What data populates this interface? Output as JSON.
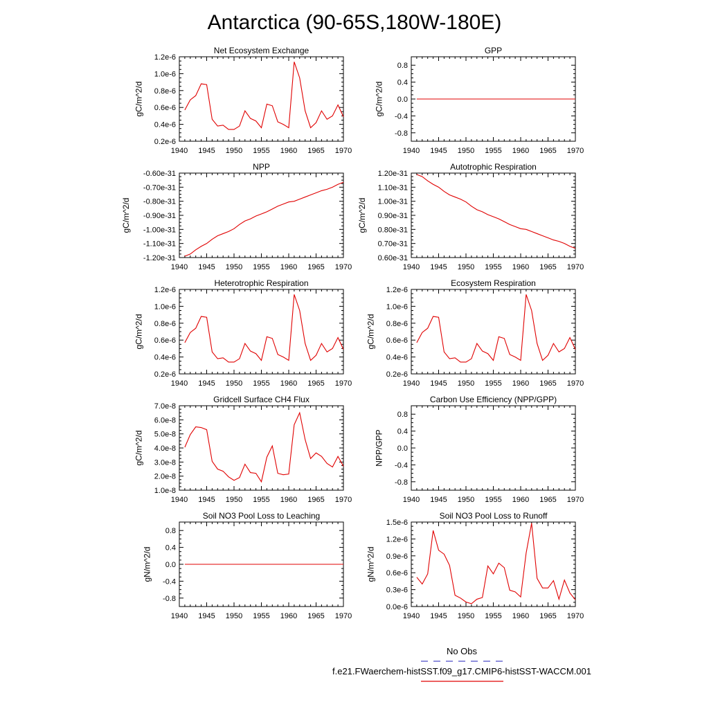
{
  "figure": {
    "title": "Antarctica (90-65S,180W-180E)",
    "legend": [
      {
        "label": "No Obs",
        "color": "#4c4cc8",
        "dash": "dashed"
      },
      {
        "label": "f.e21.FWaerchem-histSST.f09_g17.CMIP6-histSST-WACCM.001",
        "color": "#e00000",
        "dash": "solid"
      }
    ],
    "series_color": "#e00000"
  },
  "chart_data": [
    {
      "type": "line",
      "title": "Net Ecosystem Exchange",
      "ylabel": "gC/m^2/d",
      "xlim": [
        1940,
        1970
      ],
      "ylim": [
        2e-07,
        1.2e-06
      ],
      "xticks": [
        1940,
        1945,
        1950,
        1955,
        1960,
        1965,
        1970
      ],
      "xtick_labels": [
        "1940",
        "1945",
        "1950",
        "1955",
        "1960",
        "1965",
        "1970"
      ],
      "yticks": [
        2e-07,
        4e-07,
        6e-07,
        8e-07,
        1e-06,
        1.2e-06
      ],
      "ytick_labels": [
        "0.2e-6",
        "0.4e-6",
        "0.6e-6",
        "0.8e-6",
        "1.0e-6",
        "1.2e-6"
      ],
      "x": [
        1941,
        1942,
        1943,
        1944,
        1945,
        1946,
        1947,
        1948,
        1949,
        1950,
        1951,
        1952,
        1953,
        1954,
        1955,
        1956,
        1957,
        1958,
        1959,
        1960,
        1961,
        1962,
        1963,
        1964,
        1965,
        1966,
        1967,
        1968,
        1969,
        1970
      ],
      "y": [
        5.7e-07,
        6.9e-07,
        7.4e-07,
        8.8e-07,
        8.7e-07,
        4.6e-07,
        3.8e-07,
        3.9e-07,
        3.4e-07,
        3.4e-07,
        3.8e-07,
        5.6e-07,
        4.7e-07,
        4.4e-07,
        3.6e-07,
        6.4e-07,
        6.2e-07,
        4.3e-07,
        4e-07,
        3.6e-07,
        1.14e-06,
        9.5e-07,
        5.6e-07,
        3.6e-07,
        4.2e-07,
        5.6e-07,
        4.6e-07,
        5e-07,
        6.3e-07,
        4.9e-07
      ]
    },
    {
      "type": "line",
      "title": "GPP",
      "ylabel": "gC/m^2/d",
      "xlim": [
        1940,
        1970
      ],
      "ylim": [
        -1.0,
        1.0
      ],
      "xticks": [
        1940,
        1945,
        1950,
        1955,
        1960,
        1965,
        1970
      ],
      "xtick_labels": [
        "1940",
        "1945",
        "1950",
        "1955",
        "1960",
        "1965",
        "1970"
      ],
      "yticks": [
        -0.8,
        -0.4,
        0.0,
        0.4,
        0.8
      ],
      "ytick_labels": [
        "-0.8",
        "-0.4",
        "0.0",
        "0.4",
        "0.8"
      ],
      "x": [
        1941,
        1942,
        1943,
        1944,
        1945,
        1946,
        1947,
        1948,
        1949,
        1950,
        1951,
        1952,
        1953,
        1954,
        1955,
        1956,
        1957,
        1958,
        1959,
        1960,
        1961,
        1962,
        1963,
        1964,
        1965,
        1966,
        1967,
        1968,
        1969,
        1970
      ],
      "y": [
        0,
        0,
        0,
        0,
        0,
        0,
        0,
        0,
        0,
        0,
        0,
        0,
        0,
        0,
        0,
        0,
        0,
        0,
        0,
        0,
        0,
        0,
        0,
        0,
        0,
        0,
        0,
        0,
        0,
        0
      ]
    },
    {
      "type": "line",
      "title": "NPP",
      "ylabel": "gC/m^2/d",
      "xlim": [
        1940,
        1970
      ],
      "ylim": [
        -1.2e-31,
        -6e-32
      ],
      "xticks": [
        1940,
        1945,
        1950,
        1955,
        1960,
        1965,
        1970
      ],
      "xtick_labels": [
        "1940",
        "1945",
        "1950",
        "1955",
        "1960",
        "1965",
        "1970"
      ],
      "yticks": [
        -1.2e-31,
        -1.1e-31,
        -1e-31,
        -9e-32,
        -8e-32,
        -7e-32,
        -6e-32
      ],
      "ytick_labels": [
        "-1.20e-31",
        "-1.10e-31",
        "-1.00e-31",
        "-0.90e-31",
        "-0.80e-31",
        "-0.70e-31",
        "-0.60e-31"
      ],
      "x": [
        1941,
        1942,
        1943,
        1944,
        1945,
        1946,
        1947,
        1948,
        1949,
        1950,
        1951,
        1952,
        1953,
        1954,
        1955,
        1956,
        1957,
        1958,
        1959,
        1960,
        1961,
        1962,
        1963,
        1964,
        1965,
        1966,
        1967,
        1968,
        1969,
        1970
      ],
      "y": [
        -1.19e-31,
        -1.175e-31,
        -1.145e-31,
        -1.12e-31,
        -1.1e-31,
        -1.07e-31,
        -1.045e-31,
        -1.03e-31,
        -1.015e-31,
        -9.95e-32,
        -9.65e-32,
        -9.4e-32,
        -9.25e-32,
        -9.05e-32,
        -8.9e-32,
        -8.75e-32,
        -8.55e-32,
        -8.35e-32,
        -8.2e-32,
        -8.05e-32,
        -8e-32,
        -7.85e-32,
        -7.7e-32,
        -7.55e-32,
        -7.4e-32,
        -7.25e-32,
        -7.15e-32,
        -7e-32,
        -6.8e-32,
        -6.65e-32
      ]
    },
    {
      "type": "line",
      "title": "Autotrophic Respiration",
      "ylabel": "gC/m^2/d",
      "xlim": [
        1940,
        1970
      ],
      "ylim": [
        6e-32,
        1.2e-31
      ],
      "xticks": [
        1940,
        1945,
        1950,
        1955,
        1960,
        1965,
        1970
      ],
      "xtick_labels": [
        "1940",
        "1945",
        "1950",
        "1955",
        "1960",
        "1965",
        "1970"
      ],
      "yticks": [
        6e-32,
        7e-32,
        8e-32,
        9e-32,
        1e-31,
        1.1e-31,
        1.2e-31
      ],
      "ytick_labels": [
        "0.60e-31",
        "0.70e-31",
        "0.80e-31",
        "0.90e-31",
        "1.00e-31",
        "1.10e-31",
        "1.20e-31"
      ],
      "x": [
        1941,
        1942,
        1943,
        1944,
        1945,
        1946,
        1947,
        1948,
        1949,
        1950,
        1951,
        1952,
        1953,
        1954,
        1955,
        1956,
        1957,
        1958,
        1959,
        1960,
        1961,
        1962,
        1963,
        1964,
        1965,
        1966,
        1967,
        1968,
        1969,
        1970
      ],
      "y": [
        1.19e-31,
        1.175e-31,
        1.145e-31,
        1.12e-31,
        1.1e-31,
        1.07e-31,
        1.045e-31,
        1.03e-31,
        1.015e-31,
        9.95e-32,
        9.65e-32,
        9.4e-32,
        9.25e-32,
        9.05e-32,
        8.9e-32,
        8.75e-32,
        8.55e-32,
        8.35e-32,
        8.2e-32,
        8.05e-32,
        8e-32,
        7.85e-32,
        7.7e-32,
        7.55e-32,
        7.4e-32,
        7.25e-32,
        7.15e-32,
        7e-32,
        6.8e-32,
        6.65e-32
      ]
    },
    {
      "type": "line",
      "title": "Heterotrophic Respiration",
      "ylabel": "gC/m^2/d",
      "xlim": [
        1940,
        1970
      ],
      "ylim": [
        2e-07,
        1.2e-06
      ],
      "xticks": [
        1940,
        1945,
        1950,
        1955,
        1960,
        1965,
        1970
      ],
      "xtick_labels": [
        "1940",
        "1945",
        "1950",
        "1955",
        "1960",
        "1965",
        "1970"
      ],
      "yticks": [
        2e-07,
        4e-07,
        6e-07,
        8e-07,
        1e-06,
        1.2e-06
      ],
      "ytick_labels": [
        "0.2e-6",
        "0.4e-6",
        "0.6e-6",
        "0.8e-6",
        "1.0e-6",
        "1.2e-6"
      ],
      "x": [
        1941,
        1942,
        1943,
        1944,
        1945,
        1946,
        1947,
        1948,
        1949,
        1950,
        1951,
        1952,
        1953,
        1954,
        1955,
        1956,
        1957,
        1958,
        1959,
        1960,
        1961,
        1962,
        1963,
        1964,
        1965,
        1966,
        1967,
        1968,
        1969,
        1970
      ],
      "y": [
        5.7e-07,
        6.9e-07,
        7.4e-07,
        8.8e-07,
        8.7e-07,
        4.6e-07,
        3.8e-07,
        3.9e-07,
        3.4e-07,
        3.4e-07,
        3.8e-07,
        5.6e-07,
        4.7e-07,
        4.4e-07,
        3.6e-07,
        6.4e-07,
        6.2e-07,
        4.3e-07,
        4e-07,
        3.6e-07,
        1.14e-06,
        9.5e-07,
        5.6e-07,
        3.6e-07,
        4.2e-07,
        5.6e-07,
        4.6e-07,
        5e-07,
        6.3e-07,
        4.9e-07
      ]
    },
    {
      "type": "line",
      "title": "Ecosystem Respiration",
      "ylabel": "gC/m^2/d",
      "xlim": [
        1940,
        1970
      ],
      "ylim": [
        2e-07,
        1.2e-06
      ],
      "xticks": [
        1940,
        1945,
        1950,
        1955,
        1960,
        1965,
        1970
      ],
      "xtick_labels": [
        "1940",
        "1945",
        "1950",
        "1955",
        "1960",
        "1965",
        "1970"
      ],
      "yticks": [
        2e-07,
        4e-07,
        6e-07,
        8e-07,
        1e-06,
        1.2e-06
      ],
      "ytick_labels": [
        "0.2e-6",
        "0.4e-6",
        "0.6e-6",
        "0.8e-6",
        "1.0e-6",
        "1.2e-6"
      ],
      "x": [
        1941,
        1942,
        1943,
        1944,
        1945,
        1946,
        1947,
        1948,
        1949,
        1950,
        1951,
        1952,
        1953,
        1954,
        1955,
        1956,
        1957,
        1958,
        1959,
        1960,
        1961,
        1962,
        1963,
        1964,
        1965,
        1966,
        1967,
        1968,
        1969,
        1970
      ],
      "y": [
        5.7e-07,
        6.9e-07,
        7.4e-07,
        8.8e-07,
        8.7e-07,
        4.6e-07,
        3.8e-07,
        3.9e-07,
        3.4e-07,
        3.4e-07,
        3.8e-07,
        5.6e-07,
        4.7e-07,
        4.4e-07,
        3.6e-07,
        6.4e-07,
        6.2e-07,
        4.3e-07,
        4e-07,
        3.6e-07,
        1.14e-06,
        9.5e-07,
        5.6e-07,
        3.6e-07,
        4.2e-07,
        5.6e-07,
        4.6e-07,
        5e-07,
        6.3e-07,
        4.9e-07
      ]
    },
    {
      "type": "line",
      "title": "Gridcell Surface CH4 Flux",
      "ylabel": "gC/m^2/d",
      "xlim": [
        1940,
        1970
      ],
      "ylim": [
        1e-08,
        7e-08
      ],
      "xticks": [
        1940,
        1945,
        1950,
        1955,
        1960,
        1965,
        1970
      ],
      "xtick_labels": [
        "1940",
        "1945",
        "1950",
        "1955",
        "1960",
        "1965",
        "1970"
      ],
      "yticks": [
        1e-08,
        2e-08,
        3e-08,
        4e-08,
        5e-08,
        6e-08,
        7e-08
      ],
      "ytick_labels": [
        "1.0e-8",
        "2.0e-8",
        "3.0e-8",
        "4.0e-8",
        "5.0e-8",
        "6.0e-8",
        "7.0e-8"
      ],
      "x": [
        1941,
        1942,
        1943,
        1944,
        1945,
        1946,
        1947,
        1948,
        1949,
        1950,
        1951,
        1952,
        1953,
        1954,
        1955,
        1956,
        1957,
        1958,
        1959,
        1960,
        1961,
        1962,
        1963,
        1964,
        1965,
        1966,
        1967,
        1968,
        1969,
        1970
      ],
      "y": [
        4.05e-08,
        4.95e-08,
        5.5e-08,
        5.45e-08,
        5.3e-08,
        3.05e-08,
        2.5e-08,
        2.35e-08,
        1.95e-08,
        1.7e-08,
        1.9e-08,
        2.85e-08,
        2.25e-08,
        2.2e-08,
        1.6e-08,
        3.35e-08,
        4.15e-08,
        2.2e-08,
        2.1e-08,
        2.15e-08,
        5.65e-08,
        6.5e-08,
        4.6e-08,
        3.25e-08,
        3.65e-08,
        3.4e-08,
        2.9e-08,
        2.65e-08,
        3.4e-08,
        2.7e-08
      ]
    },
    {
      "type": "line",
      "title": "Carbon Use Efficiency (NPP/GPP)",
      "ylabel": "NPP/GPP",
      "xlim": [
        1940,
        1970
      ],
      "ylim": [
        -1.0,
        1.0
      ],
      "xticks": [
        1940,
        1945,
        1950,
        1955,
        1960,
        1965,
        1970
      ],
      "xtick_labels": [
        "1940",
        "1945",
        "1950",
        "1955",
        "1960",
        "1965",
        "1970"
      ],
      "yticks": [
        -0.8,
        -0.4,
        0.0,
        0.4,
        0.8
      ],
      "ytick_labels": [
        "-0.8",
        "-0.4",
        "0.0",
        "0.4",
        "0.8"
      ],
      "x": [],
      "y": []
    },
    {
      "type": "line",
      "title": "Soil NO3 Pool Loss to Leaching",
      "ylabel": "gN/m^2/d",
      "xlim": [
        1940,
        1970
      ],
      "ylim": [
        -1.0,
        1.0
      ],
      "xticks": [
        1940,
        1945,
        1950,
        1955,
        1960,
        1965,
        1970
      ],
      "xtick_labels": [
        "1940",
        "1945",
        "1950",
        "1955",
        "1960",
        "1965",
        "1970"
      ],
      "yticks": [
        -0.8,
        -0.4,
        0.0,
        0.4,
        0.8
      ],
      "ytick_labels": [
        "-0.8",
        "-0.4",
        "0.0",
        "0.4",
        "0.8"
      ],
      "x": [
        1941,
        1942,
        1943,
        1944,
        1945,
        1946,
        1947,
        1948,
        1949,
        1950,
        1951,
        1952,
        1953,
        1954,
        1955,
        1956,
        1957,
        1958,
        1959,
        1960,
        1961,
        1962,
        1963,
        1964,
        1965,
        1966,
        1967,
        1968,
        1969,
        1970
      ],
      "y": [
        0,
        0,
        0,
        0,
        0,
        0,
        0,
        0,
        0,
        0,
        0,
        0,
        0,
        0,
        0,
        0,
        0,
        0,
        0,
        0,
        0,
        0,
        0,
        0,
        0,
        0,
        0,
        0,
        0,
        0
      ]
    },
    {
      "type": "line",
      "title": "Soil NO3 Pool Loss to Runoff",
      "ylabel": "gN/m^2/d",
      "xlim": [
        1940,
        1970
      ],
      "ylim": [
        0.0,
        1.5e-06
      ],
      "xticks": [
        1940,
        1945,
        1950,
        1955,
        1960,
        1965,
        1970
      ],
      "xtick_labels": [
        "1940",
        "1945",
        "1950",
        "1955",
        "1960",
        "1965",
        "1970"
      ],
      "yticks": [
        0.0,
        3e-07,
        6e-07,
        9e-07,
        1.2e-06,
        1.5e-06
      ],
      "ytick_labels": [
        "0.0e-6",
        "0.3e-6",
        "0.6e-6",
        "0.9e-6",
        "1.2e-6",
        "1.5e-6"
      ],
      "x": [
        1941,
        1942,
        1943,
        1944,
        1945,
        1946,
        1947,
        1948,
        1949,
        1950,
        1951,
        1952,
        1953,
        1954,
        1955,
        1956,
        1957,
        1958,
        1959,
        1960,
        1961,
        1962,
        1963,
        1964,
        1965,
        1966,
        1967,
        1968,
        1969,
        1970
      ],
      "y": [
        5.2e-07,
        4e-07,
        5.8e-07,
        1.35e-06,
        1e-06,
        9.3e-07,
        7.3e-07,
        2e-07,
        1.5e-07,
        8e-08,
        5e-08,
        1.3e-07,
        1.6e-07,
        7.2e-07,
        5.8e-07,
        7.7e-07,
        6.9e-07,
        2.9e-07,
        2.6e-07,
        1.7e-07,
        9.5e-07,
        1.48e-06,
        5e-07,
        3.3e-07,
        3.3e-07,
        4.6e-07,
        1.3e-07,
        4.7e-07,
        2.4e-07,
        1.2e-07
      ]
    }
  ]
}
